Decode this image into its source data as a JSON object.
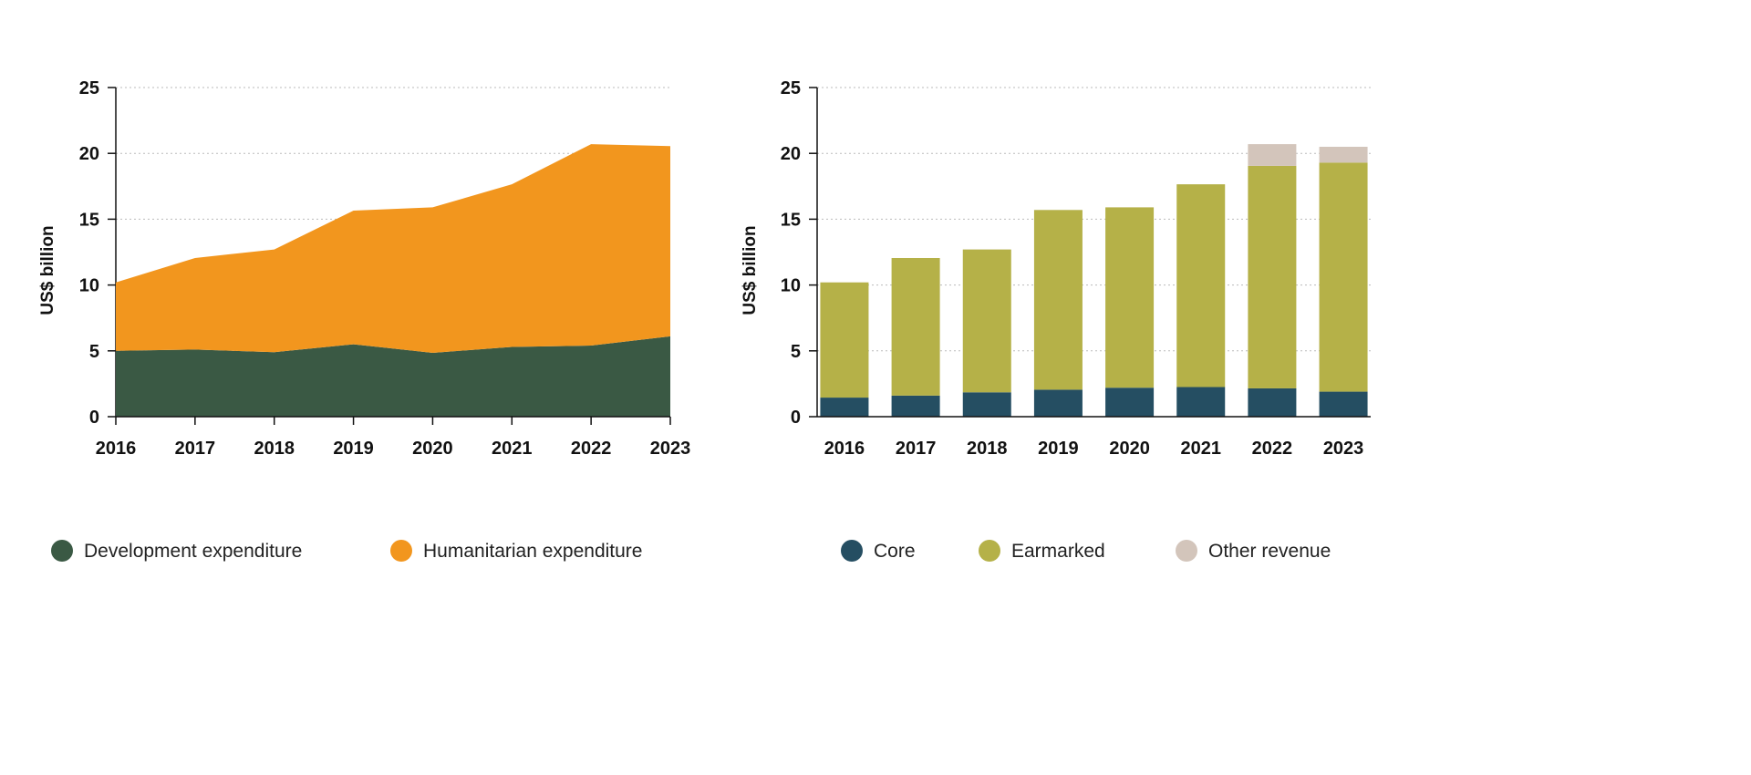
{
  "chart_data": [
    {
      "type": "area",
      "stacked": true,
      "ylabel": "US$ billion",
      "xlabel": "",
      "ylim": [
        0,
        25
      ],
      "yticks": [
        0,
        5,
        10,
        15,
        20,
        25
      ],
      "grid": "horizontal dotted",
      "legend_position": "bottom",
      "categories": [
        "2016",
        "2017",
        "2018",
        "2019",
        "2020",
        "2021",
        "2022",
        "2023"
      ],
      "series": [
        {
          "name": "Development expenditure",
          "color": "#3a5944",
          "values": [
            5.0,
            5.1,
            4.9,
            5.5,
            4.85,
            5.3,
            5.4,
            6.1
          ]
        },
        {
          "name": "Humanitarian expenditure",
          "color": "#f2961e",
          "values": [
            5.2,
            6.95,
            7.8,
            10.15,
            11.05,
            12.35,
            15.3,
            14.45
          ]
        }
      ]
    },
    {
      "type": "bar",
      "stacked": true,
      "ylabel": "US$ billion",
      "xlabel": "",
      "ylim": [
        0,
        25
      ],
      "yticks": [
        0,
        5,
        10,
        15,
        20,
        25
      ],
      "grid": "horizontal dotted",
      "legend_position": "bottom",
      "categories": [
        "2016",
        "2017",
        "2018",
        "2019",
        "2020",
        "2021",
        "2022",
        "2023"
      ],
      "series": [
        {
          "name": "Core",
          "color": "#254e62",
          "values": [
            1.45,
            1.6,
            1.85,
            2.05,
            2.2,
            2.25,
            2.15,
            1.9
          ]
        },
        {
          "name": "Earmarked",
          "color": "#b5b148",
          "values": [
            8.75,
            10.45,
            10.85,
            13.65,
            13.7,
            15.4,
            16.9,
            17.4
          ]
        },
        {
          "name": "Other revenue",
          "color": "#d3c5bb",
          "values": [
            0,
            0,
            0,
            0,
            0,
            0,
            1.65,
            1.2
          ]
        }
      ]
    }
  ]
}
